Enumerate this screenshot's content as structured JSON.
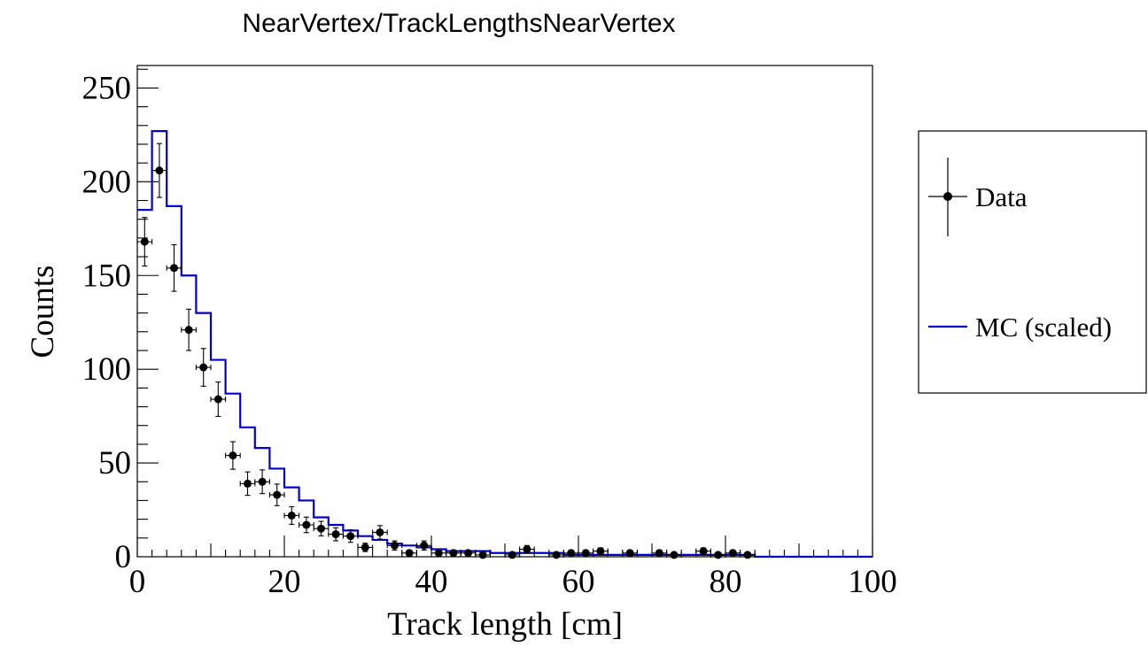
{
  "title": "NearVertex/TrackLengthsNearVertex",
  "chart_data": {
    "type": "bar",
    "xlabel": "Track length [cm]",
    "ylabel": "Counts",
    "xlim": [
      0,
      100
    ],
    "ylim": [
      0,
      262
    ],
    "bin_width": 2,
    "x_ticks": [
      0,
      20,
      40,
      60,
      80,
      100
    ],
    "y_ticks": [
      0,
      50,
      100,
      150,
      200,
      250
    ],
    "legend": {
      "placement": "right",
      "entries": [
        {
          "label": "Data",
          "style": "marker-with-error-bars",
          "color": "#000000"
        },
        {
          "label": "MC (scaled)",
          "style": "line",
          "color": "#0000cc"
        }
      ]
    },
    "series": [
      {
        "name": "MC (scaled)",
        "kind": "step-histogram",
        "color": "#0000cc",
        "bin_edges": [
          0,
          2,
          4,
          6,
          8,
          10,
          12,
          14,
          16,
          18,
          20,
          22,
          24,
          26,
          28,
          30,
          32,
          34,
          36,
          38,
          40,
          42,
          44,
          46,
          48,
          50,
          52,
          54,
          56,
          58,
          60,
          62,
          64,
          66,
          68,
          70,
          72,
          74,
          76,
          78,
          80,
          82,
          84,
          86,
          88,
          90,
          92,
          94,
          96,
          98,
          100
        ],
        "values": [
          185,
          227,
          187,
          150,
          130,
          105,
          87,
          69,
          58,
          47,
          37,
          30,
          21,
          17,
          14,
          11,
          9,
          7,
          6,
          5,
          4,
          3,
          3,
          3,
          2,
          2,
          2,
          2,
          2,
          1,
          1,
          1,
          1,
          1,
          1,
          1,
          1,
          1,
          1,
          1,
          1,
          1,
          0,
          0,
          0,
          0,
          0,
          0,
          0,
          0
        ]
      },
      {
        "name": "Data",
        "kind": "points-with-errors",
        "color": "#000000",
        "points": [
          {
            "x": 1,
            "y": 168
          },
          {
            "x": 3,
            "y": 206
          },
          {
            "x": 5,
            "y": 154
          },
          {
            "x": 7,
            "y": 121
          },
          {
            "x": 9,
            "y": 101
          },
          {
            "x": 11,
            "y": 84
          },
          {
            "x": 13,
            "y": 54
          },
          {
            "x": 15,
            "y": 39
          },
          {
            "x": 17,
            "y": 40
          },
          {
            "x": 19,
            "y": 33
          },
          {
            "x": 21,
            "y": 22
          },
          {
            "x": 23,
            "y": 17
          },
          {
            "x": 25,
            "y": 15
          },
          {
            "x": 27,
            "y": 12
          },
          {
            "x": 29,
            "y": 11
          },
          {
            "x": 31,
            "y": 5
          },
          {
            "x": 33,
            "y": 13
          },
          {
            "x": 35,
            "y": 6
          },
          {
            "x": 37,
            "y": 2
          },
          {
            "x": 39,
            "y": 6
          },
          {
            "x": 41,
            "y": 2
          },
          {
            "x": 43,
            "y": 2
          },
          {
            "x": 45,
            "y": 2
          },
          {
            "x": 47,
            "y": 1
          },
          {
            "x": 51,
            "y": 1
          },
          {
            "x": 53,
            "y": 4
          },
          {
            "x": 57,
            "y": 1
          },
          {
            "x": 59,
            "y": 2
          },
          {
            "x": 61,
            "y": 2
          },
          {
            "x": 63,
            "y": 3
          },
          {
            "x": 67,
            "y": 2
          },
          {
            "x": 71,
            "y": 2
          },
          {
            "x": 73,
            "y": 1
          },
          {
            "x": 77,
            "y": 3
          },
          {
            "x": 79,
            "y": 1
          },
          {
            "x": 81,
            "y": 2
          },
          {
            "x": 83,
            "y": 1
          }
        ]
      }
    ]
  }
}
